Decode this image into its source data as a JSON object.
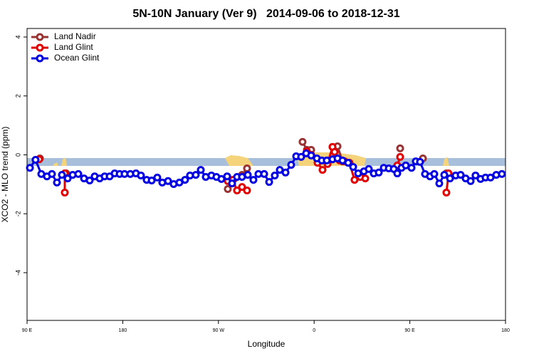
{
  "chart_data": {
    "type": "line",
    "title": "5N-10N January (Ver 9)   2014-09-06 to 2018-12-31",
    "x_label": "Longitude",
    "y_label": "XCO2 - MLO trend (ppm)",
    "xlim": [
      90,
      540
    ],
    "ylim": [
      -5.62,
      4.29
    ],
    "xticks": [
      {
        "value": 90,
        "label": "90 E"
      },
      {
        "value": 180,
        "label": "180"
      },
      {
        "value": 270,
        "label": "90 W"
      },
      {
        "value": 360,
        "label": "0"
      },
      {
        "value": 450,
        "label": "90 E"
      },
      {
        "value": 540,
        "label": "180"
      }
    ],
    "yticks": [
      -4,
      -2,
      0,
      2,
      4
    ],
    "legend": "top-left",
    "series": [
      {
        "name": "Land Nadir",
        "color": "#993333",
        "x": [
          102.1,
          null,
          126.8,
          null,
          278.8,
          292.2,
          296.9,
          null,
          349.1,
          353.2,
          357.2,
          null,
          377.3,
          382.0,
          386.7,
          null,
          440.9,
          null,
          462.3,
          null,
          484.4
        ],
        "values": [
          -0.12,
          null,
          -0.63,
          null,
          -1.16,
          -0.68,
          -0.46,
          null,
          0.44,
          0.17,
          0.17,
          null,
          0.27,
          0.29,
          -0.22,
          null,
          0.22,
          null,
          -0.12,
          null,
          -0.63
        ]
      },
      {
        "name": "Land Glint",
        "color": "#e00000",
        "x": [
          101.4,
          null,
          125.5,
          125.5,
          null,
          278.8,
          283.5,
          287.5,
          292.2,
          296.9,
          null,
          353.2,
          357.2,
          363.2,
          367.9,
          372.6,
          377.3,
          379.3,
          384.0,
          388.7,
          393.3,
          398.0,
          403.4,
          408.1,
          null,
          438.2,
          440.9,
          null,
          484.4,
          486.4
        ],
        "values": [
          -0.15,
          null,
          -0.63,
          -1.28,
          null,
          -0.89,
          -0.85,
          -1.21,
          -1.09,
          -1.21,
          null,
          0.12,
          0.0,
          -0.27,
          -0.51,
          -0.31,
          0.27,
          0.1,
          -0.19,
          -0.22,
          -0.27,
          -0.85,
          -0.75,
          -0.8,
          null,
          -0.36,
          -0.07,
          null,
          -1.28,
          -0.63
        ]
      },
      {
        "name": "Ocean Glint",
        "color": "#0000e0",
        "x": [
          92.7,
          98.0,
          103.4,
          108.7,
          113.4,
          118.1,
          122.8,
          128.2,
          132.9,
          138.2,
          143.6,
          148.9,
          153.6,
          158.3,
          163.0,
          167.7,
          172.4,
          177.1,
          181.7,
          187.1,
          192.4,
          197.1,
          202.5,
          207.2,
          212.5,
          217.2,
          222.6,
          227.9,
          233.3,
          238.6,
          243.3,
          248.7,
          253.4,
          258.1,
          263.4,
          268.1,
          272.8,
          278.2,
          282.8,
          287.5,
          292.2,
          297.6,
          302.9,
          307.6,
          313.0,
          317.7,
          323.0,
          327.7,
          333.1,
          338.4,
          343.1,
          347.8,
          352.5,
          357.2,
          362.6,
          367.2,
          371.9,
          377.3,
          382.0,
          386.7,
          392.0,
          396.7,
          401.4,
          406.8,
          411.4,
          416.1,
          420.8,
          425.5,
          430.2,
          434.9,
          438.2,
          442.2,
          446.2,
          451.6,
          455.6,
          459.6,
          464.3,
          469.0,
          473.0,
          477.7,
          482.4,
          487.8,
          493.1,
          497.8,
          502.5,
          507.2,
          511.8,
          516.5,
          521.2,
          525.9,
          531.3,
          536.6
        ],
        "values": [
          -0.44,
          -0.17,
          -0.65,
          -0.73,
          -0.65,
          -0.94,
          -0.68,
          -0.8,
          -0.68,
          -0.65,
          -0.8,
          -0.87,
          -0.73,
          -0.8,
          -0.73,
          -0.73,
          -0.63,
          -0.65,
          -0.65,
          -0.65,
          -0.63,
          -0.7,
          -0.85,
          -0.87,
          -0.77,
          -0.94,
          -0.89,
          -0.99,
          -0.94,
          -0.85,
          -0.7,
          -0.68,
          -0.51,
          -0.75,
          -0.7,
          -0.75,
          -0.82,
          -0.73,
          -0.97,
          -0.75,
          -0.75,
          -0.68,
          -0.85,
          -0.65,
          -0.65,
          -0.92,
          -0.7,
          -0.51,
          -0.6,
          -0.34,
          -0.05,
          -0.07,
          0.05,
          -0.02,
          -0.12,
          -0.19,
          -0.19,
          -0.15,
          -0.12,
          -0.19,
          -0.27,
          -0.41,
          -0.63,
          -0.56,
          -0.48,
          -0.63,
          -0.6,
          -0.44,
          -0.46,
          -0.48,
          -0.63,
          -0.44,
          -0.36,
          -0.44,
          -0.22,
          -0.24,
          -0.65,
          -0.73,
          -0.65,
          -0.97,
          -0.68,
          -0.8,
          -0.7,
          -0.68,
          -0.8,
          -0.89,
          -0.7,
          -0.82,
          -0.77,
          -0.77,
          -0.68,
          -0.65
        ]
      }
    ]
  }
}
